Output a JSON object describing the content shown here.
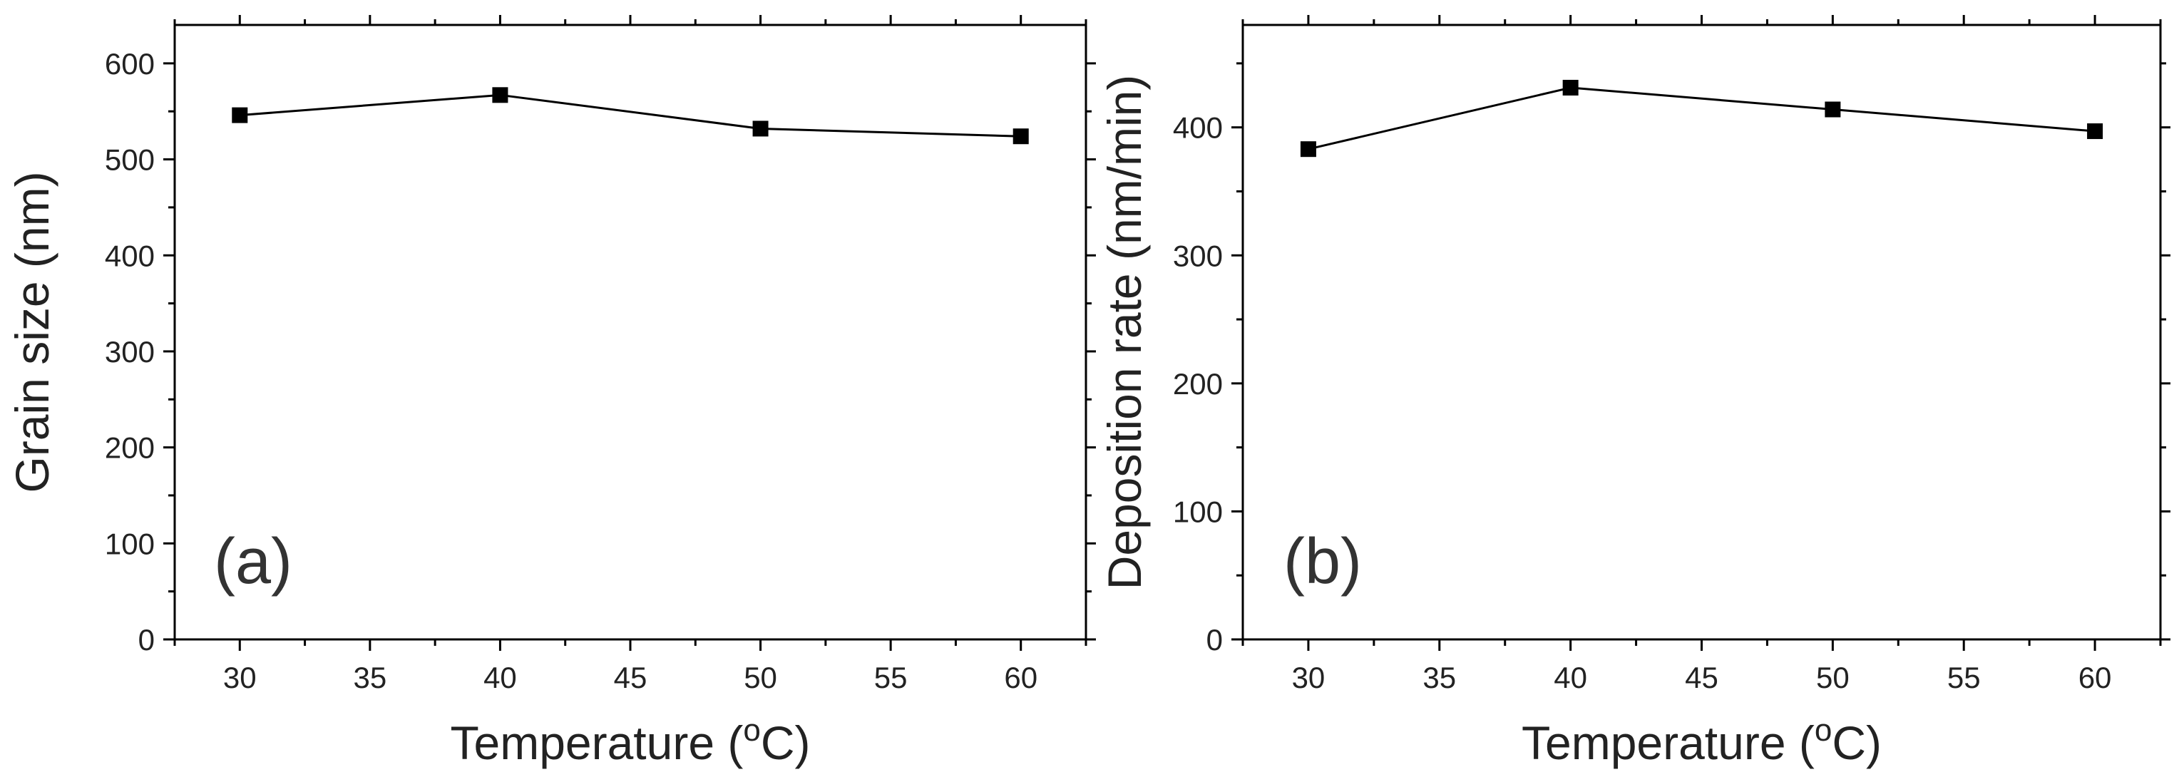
{
  "chart_data": [
    {
      "type": "line",
      "panel_label": "(a)",
      "xlabel": "Temperature (",
      "xlabel_sup": "o",
      "xlabel_suffix": "C)",
      "ylabel": "Grain size (nm)",
      "x": [
        30,
        40,
        50,
        60
      ],
      "series": [
        {
          "name": "Grain size",
          "values": [
            546,
            567,
            532,
            524
          ]
        }
      ],
      "xlim": [
        27.5,
        62.5
      ],
      "ylim": [
        0,
        640
      ],
      "xticks": [
        30,
        35,
        40,
        45,
        50,
        55,
        60
      ],
      "yticks": [
        0,
        100,
        200,
        300,
        400,
        500,
        600
      ]
    },
    {
      "type": "line",
      "panel_label": "(b)",
      "xlabel": "Temperature (",
      "xlabel_sup": "o",
      "xlabel_suffix": "C)",
      "ylabel": "Deposition rate (nm/min)",
      "x": [
        30,
        40,
        50,
        60
      ],
      "series": [
        {
          "name": "Deposition rate",
          "values": [
            383,
            431,
            414,
            397
          ]
        }
      ],
      "xlim": [
        27.5,
        62.5
      ],
      "ylim": [
        0,
        480
      ],
      "xticks": [
        30,
        35,
        40,
        45,
        50,
        55,
        60
      ],
      "yticks": [
        0,
        100,
        200,
        300,
        400
      ]
    }
  ]
}
